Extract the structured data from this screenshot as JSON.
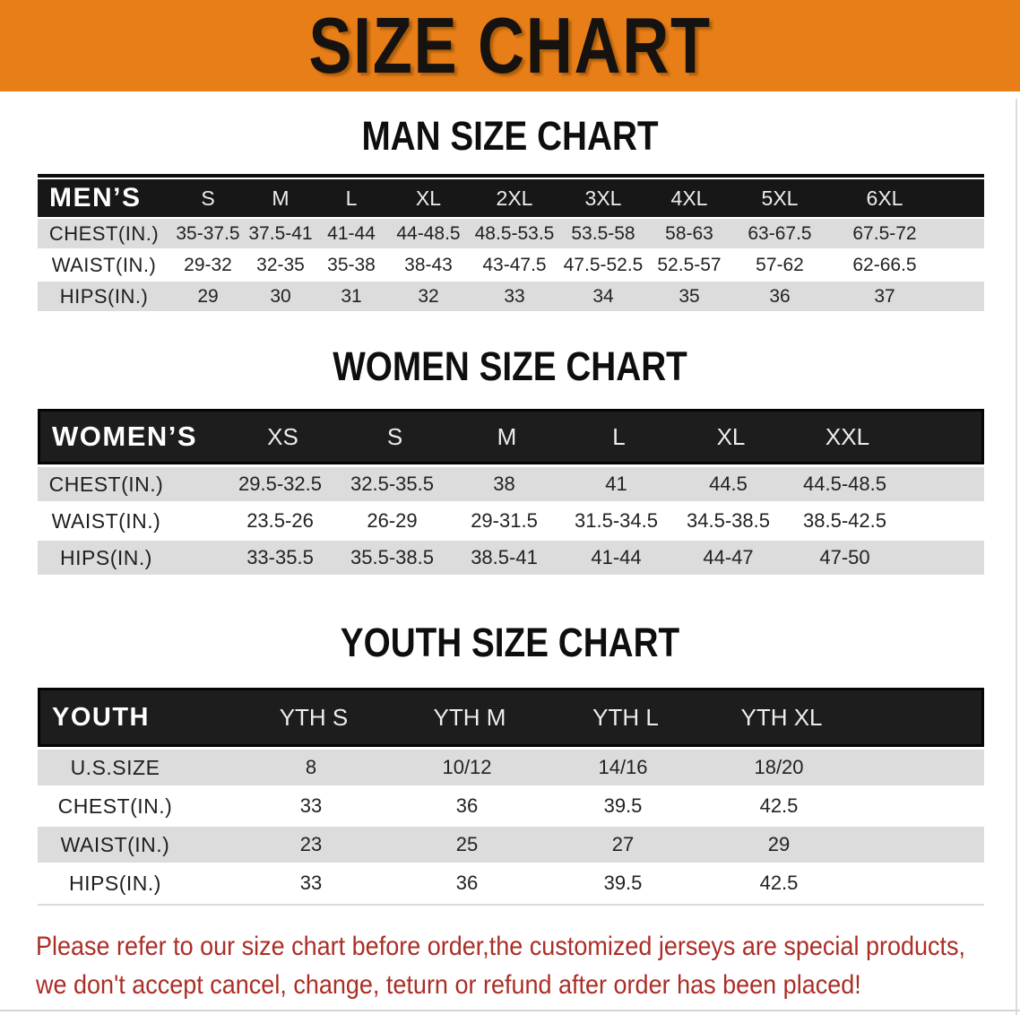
{
  "banner": {
    "title": "SIZE CHART"
  },
  "sections": [
    {
      "heading": "MAN SIZE CHART",
      "group_label": "MEN’S",
      "columns": [
        "S",
        "M",
        "L",
        "XL",
        "2XL",
        "3XL",
        "4XL",
        "5XL",
        "6XL"
      ],
      "rows": [
        {
          "label": "CHEST(IN.)",
          "values": [
            "35-37.5",
            "37.5-41",
            "41-44",
            "44-48.5",
            "48.5-53.5",
            "53.5-58",
            "58-63",
            "63-67.5",
            "67.5-72"
          ]
        },
        {
          "label": "WAIST(IN.)",
          "values": [
            "29-32",
            "32-35",
            "35-38",
            "38-43",
            "43-47.5",
            "47.5-52.5",
            "52.5-57",
            "57-62",
            "62-66.5"
          ]
        },
        {
          "label": "HIPS(IN.)",
          "values": [
            "29",
            "30",
            "31",
            "32",
            "33",
            "34",
            "35",
            "36",
            "37"
          ]
        }
      ]
    },
    {
      "heading": "WOMEN SIZE CHART",
      "group_label": "WOMEN’S",
      "columns": [
        "XS",
        "S",
        "M",
        "L",
        "XL",
        "XXL"
      ],
      "rows": [
        {
          "label": "CHEST(IN.)",
          "values": [
            "29.5-32.5",
            "32.5-35.5",
            "38",
            "41",
            "44.5",
            "44.5-48.5"
          ]
        },
        {
          "label": "WAIST(IN.)",
          "values": [
            "23.5-26",
            "26-29",
            "29-31.5",
            "31.5-34.5",
            "34.5-38.5",
            "38.5-42.5"
          ]
        },
        {
          "label": "HIPS(IN.)",
          "values": [
            "33-35.5",
            "35.5-38.5",
            "38.5-41",
            "41-44",
            "44-47",
            "47-50"
          ]
        }
      ]
    },
    {
      "heading": "YOUTH SIZE CHART",
      "group_label": "YOUTH",
      "columns": [
        "YTH S",
        "YTH M",
        "YTH L",
        "YTH XL"
      ],
      "rows": [
        {
          "label": "U.S.SIZE",
          "values": [
            "8",
            "10/12",
            "14/16",
            "18/20"
          ]
        },
        {
          "label": "CHEST(IN.)",
          "values": [
            "33",
            "36",
            "39.5",
            "42.5"
          ]
        },
        {
          "label": "WAIST(IN.)",
          "values": [
            "23",
            "25",
            "27",
            "29"
          ]
        },
        {
          "label": "HIPS(IN.)",
          "values": [
            "33",
            "36",
            "39.5",
            "42.5"
          ]
        }
      ]
    }
  ],
  "footer": {
    "lines": [
      "Please refer to our size chart before order,the customized jerseys are special products,",
      "we don't accept cancel, change, teturn or refund after order has been placed!"
    ]
  },
  "colors": {
    "banner_orange": "#e87e17",
    "header_bar_black": "#171717",
    "stripe_gray": "#dcdcdc",
    "footer_red": "#ab2e26"
  }
}
